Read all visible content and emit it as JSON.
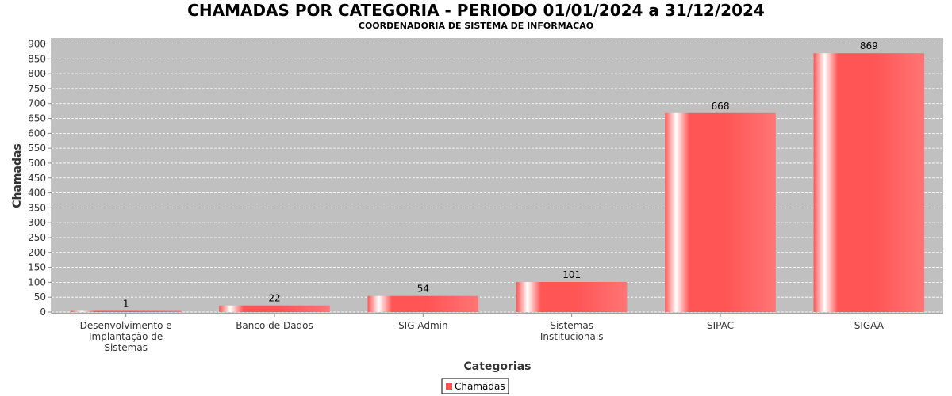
{
  "chart_data": {
    "type": "bar",
    "title": "CHAMADAS POR CATEGORIA - PERIODO 01/01/2024 a 31/12/2024",
    "subtitle": "COORDENADORIA DE SISTEMA DE INFORMACAO",
    "xlabel": "Categorias",
    "ylabel": "Chamadas",
    "ylim": [
      0,
      920
    ],
    "yticks": [
      0,
      50,
      100,
      150,
      200,
      250,
      300,
      350,
      400,
      450,
      500,
      550,
      600,
      650,
      700,
      750,
      800,
      850,
      900
    ],
    "grid": true,
    "legend_position": "bottom",
    "categories": [
      [
        "Desenvolvimento e",
        "Implantação de",
        "Sistemas"
      ],
      [
        "Banco de Dados"
      ],
      [
        "SIG Admin"
      ],
      [
        "Sistemas",
        "Institucionais"
      ],
      [
        "SIPAC"
      ],
      [
        "SIGAA"
      ]
    ],
    "series": [
      {
        "name": "Chamadas",
        "values": [
          1,
          22,
          54,
          101,
          668,
          869
        ],
        "color": "#ff5555"
      }
    ],
    "colors": {
      "plot_background": "#c0c0c0",
      "gridline": "#ffffff",
      "bar": "#ff5555"
    }
  }
}
